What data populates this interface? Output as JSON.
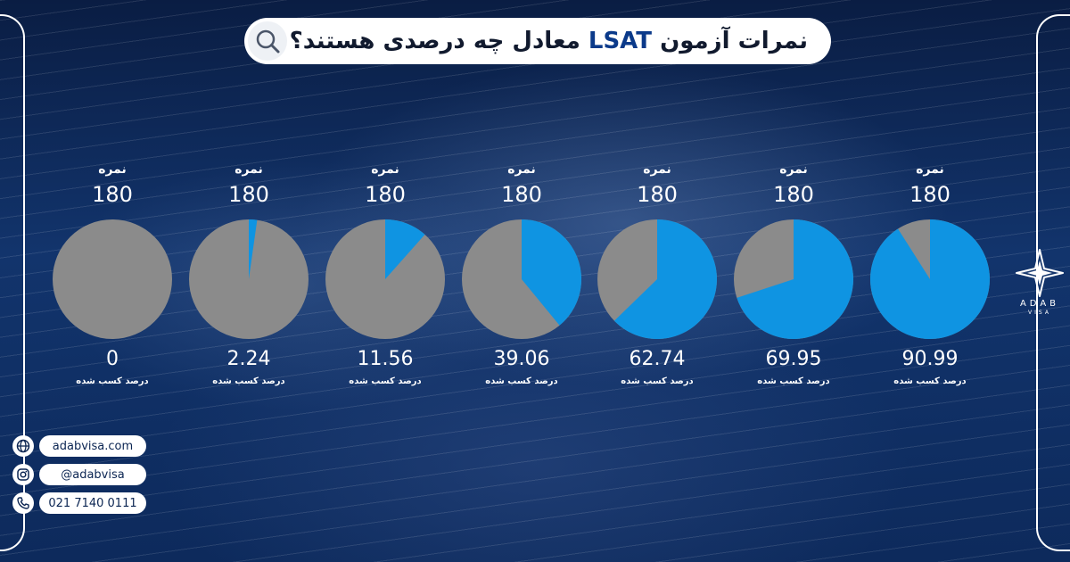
{
  "header": {
    "title_before": "نمرات آزمون ",
    "title_highlight": "LSAT",
    "title_after": " معادل چه درصدی هستند؟"
  },
  "chart_data": {
    "type": "pie",
    "title": "نمرات آزمون LSAT معادل چه درصدی هستند؟",
    "score_label": "نمره",
    "percent_label": "درصد کسب شده",
    "colors": {
      "achieved": "#0f94e2",
      "remaining": "#8b8b8b"
    },
    "items": [
      {
        "score": "180",
        "percent": 90.99,
        "percent_text": "90.99"
      },
      {
        "score": "180",
        "percent": 69.95,
        "percent_text": "69.95"
      },
      {
        "score": "180",
        "percent": 62.74,
        "percent_text": "62.74"
      },
      {
        "score": "180",
        "percent": 39.06,
        "percent_text": "39.06"
      },
      {
        "score": "180",
        "percent": 11.56,
        "percent_text": "11.56"
      },
      {
        "score": "180",
        "percent": 2.24,
        "percent_text": "2.24"
      },
      {
        "score": "180",
        "percent": 0,
        "percent_text": "0"
      }
    ]
  },
  "contacts": {
    "website": "adabvisa.com",
    "instagram": "@adabvisa",
    "phone": "021 7140 0111"
  },
  "logo": {
    "name": "ADAB",
    "sub": "VISA"
  }
}
